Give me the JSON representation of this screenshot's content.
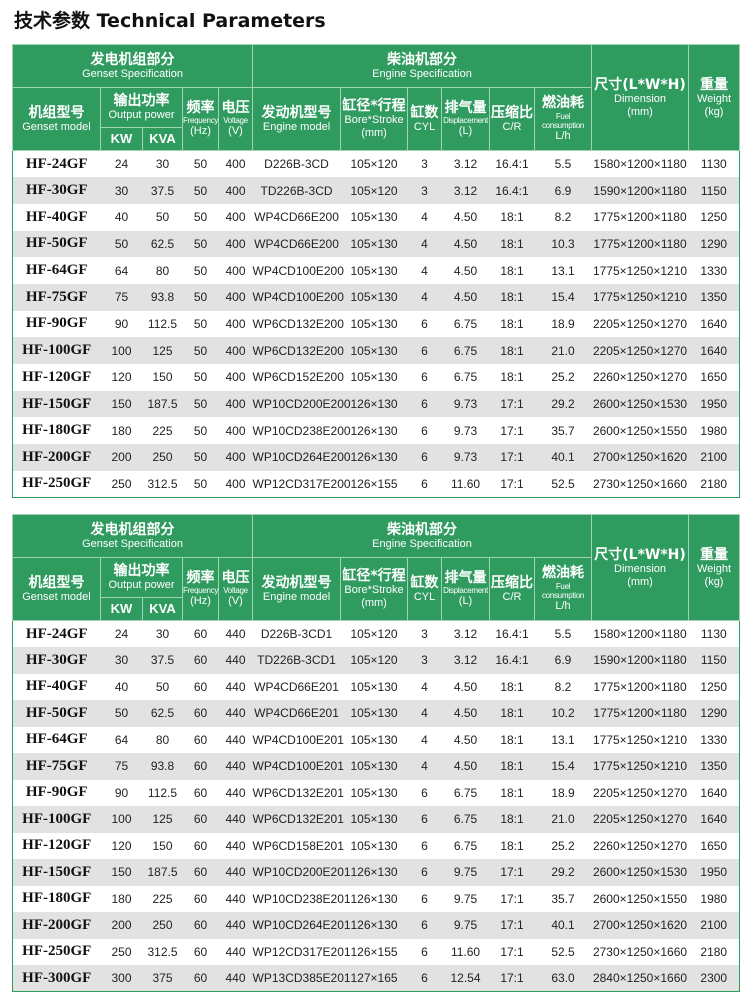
{
  "title": "技术参数 Technical Parameters",
  "header": {
    "genset_cn": "发电机组部分",
    "genset_en": "Genset  Specification",
    "engine_cn": "柴油机部分",
    "engine_en": "Engine  Specification",
    "model_cn": "机组型号",
    "model_en": "Genset model",
    "power_cn": "输出功率",
    "power_en": "Output power",
    "kw": "KW",
    "kva": "KVA",
    "freq_cn": "频率",
    "freq_en": "Frequency",
    "freq_unit": "(Hz)",
    "volt_cn": "电压",
    "volt_en": "Voltage",
    "volt_unit": "(V)",
    "engine_model_cn": "发动机型号",
    "engine_model_en": "Engine model",
    "bore_cn": "缸径*行程",
    "bore_en": "Bore*Stroke",
    "bore_unit": "(mm)",
    "cyl_cn": "缸数",
    "cyl_en": "CYL",
    "disp_cn": "排气量",
    "disp_en": "Displacement",
    "disp_unit": "(L)",
    "cr_cn": "压缩比",
    "cr_en": "C/R",
    "fuel_cn": "燃油耗",
    "fuel_en": "Fuel consumption",
    "fuel_unit": "L/h",
    "dim_cn": "尺寸(L*W*H)",
    "dim_en": "Dimension",
    "dim_unit": "(mm)",
    "weight_cn": "重量",
    "weight_en": "Weight",
    "weight_unit": "(kg)"
  },
  "table_50hz": [
    [
      "HF-24GF",
      "24",
      "30",
      "50",
      "400",
      "D226B-3CD",
      "105×120",
      "3",
      "3.12",
      "16.4:1",
      "5.5",
      "1580×1200×1180",
      "1130"
    ],
    [
      "HF-30GF",
      "30",
      "37.5",
      "50",
      "400",
      "TD226B-3CD",
      "105×120",
      "3",
      "3.12",
      "16.4:1",
      "6.9",
      "1590×1200×1180",
      "1150"
    ],
    [
      "HF-40GF",
      "40",
      "50",
      "50",
      "400",
      "WP4CD66E200",
      "105×130",
      "4",
      "4.50",
      "18:1",
      "8.2",
      "1775×1200×1180",
      "1250"
    ],
    [
      "HF-50GF",
      "50",
      "62.5",
      "50",
      "400",
      "WP4CD66E200",
      "105×130",
      "4",
      "4.50",
      "18:1",
      "10.3",
      "1775×1200×1180",
      "1290"
    ],
    [
      "HF-64GF",
      "64",
      "80",
      "50",
      "400",
      "WP4CD100E200",
      "105×130",
      "4",
      "4.50",
      "18:1",
      "13.1",
      "1775×1250×1210",
      "1330"
    ],
    [
      "HF-75GF",
      "75",
      "93.8",
      "50",
      "400",
      "WP4CD100E200",
      "105×130",
      "4",
      "4.50",
      "18:1",
      "15.4",
      "1775×1250×1210",
      "1350"
    ],
    [
      "HF-90GF",
      "90",
      "112.5",
      "50",
      "400",
      "WP6CD132E200",
      "105×130",
      "6",
      "6.75",
      "18:1",
      "18.9",
      "2205×1250×1270",
      "1640"
    ],
    [
      "HF-100GF",
      "100",
      "125",
      "50",
      "400",
      "WP6CD132E200",
      "105×130",
      "6",
      "6.75",
      "18:1",
      "21.0",
      "2205×1250×1270",
      "1640"
    ],
    [
      "HF-120GF",
      "120",
      "150",
      "50",
      "400",
      "WP6CD152E200",
      "105×130",
      "6",
      "6.75",
      "18:1",
      "25.2",
      "2260×1250×1270",
      "1650"
    ],
    [
      "HF-150GF",
      "150",
      "187.5",
      "50",
      "400",
      "WP10CD200E200",
      "126×130",
      "6",
      "9.73",
      "17:1",
      "29.2",
      "2600×1250×1530",
      "1950"
    ],
    [
      "HF-180GF",
      "180",
      "225",
      "50",
      "400",
      "WP10CD238E200",
      "126×130",
      "6",
      "9.73",
      "17:1",
      "35.7",
      "2600×1250×1550",
      "1980"
    ],
    [
      "HF-200GF",
      "200",
      "250",
      "50",
      "400",
      "WP10CD264E200",
      "126×130",
      "6",
      "9.73",
      "17:1",
      "40.1",
      "2700×1250×1620",
      "2100"
    ],
    [
      "HF-250GF",
      "250",
      "312.5",
      "50",
      "400",
      "WP12CD317E200",
      "126×155",
      "6",
      "11.60",
      "17:1",
      "52.5",
      "2730×1250×1660",
      "2180"
    ]
  ],
  "table_60hz": [
    [
      "HF-24GF",
      "24",
      "30",
      "60",
      "440",
      "D226B-3CD1",
      "105×120",
      "3",
      "3.12",
      "16.4:1",
      "5.5",
      "1580×1200×1180",
      "1130"
    ],
    [
      "HF-30GF",
      "30",
      "37.5",
      "60",
      "440",
      "TD226B-3CD1",
      "105×120",
      "3",
      "3.12",
      "16.4:1",
      "6.9",
      "1590×1200×1180",
      "1150"
    ],
    [
      "HF-40GF",
      "40",
      "50",
      "60",
      "440",
      "WP4CD66E201",
      "105×130",
      "4",
      "4.50",
      "18:1",
      "8.2",
      "1775×1200×1180",
      "1250"
    ],
    [
      "HF-50GF",
      "50",
      "62.5",
      "60",
      "440",
      "WP4CD66E201",
      "105×130",
      "4",
      "4.50",
      "18:1",
      "10.2",
      "1775×1200×1180",
      "1290"
    ],
    [
      "HF-64GF",
      "64",
      "80",
      "60",
      "440",
      "WP4CD100E201",
      "105×130",
      "4",
      "4.50",
      "18:1",
      "13.1",
      "1775×1250×1210",
      "1330"
    ],
    [
      "HF-75GF",
      "75",
      "93.8",
      "60",
      "440",
      "WP4CD100E201",
      "105×130",
      "4",
      "4.50",
      "18:1",
      "15.4",
      "1775×1250×1210",
      "1350"
    ],
    [
      "HF-90GF",
      "90",
      "112.5",
      "60",
      "440",
      "WP6CD132E201",
      "105×130",
      "6",
      "6.75",
      "18:1",
      "18.9",
      "2205×1250×1270",
      "1640"
    ],
    [
      "HF-100GF",
      "100",
      "125",
      "60",
      "440",
      "WP6CD132E201",
      "105×130",
      "6",
      "6.75",
      "18:1",
      "21.0",
      "2205×1250×1270",
      "1640"
    ],
    [
      "HF-120GF",
      "120",
      "150",
      "60",
      "440",
      "WP6CD158E201",
      "105×130",
      "6",
      "6.75",
      "18:1",
      "25.2",
      "2260×1250×1270",
      "1650"
    ],
    [
      "HF-150GF",
      "150",
      "187.5",
      "60",
      "440",
      "WP10CD200E201",
      "126×130",
      "6",
      "9.75",
      "17:1",
      "29.2",
      "2600×1250×1530",
      "1950"
    ],
    [
      "HF-180GF",
      "180",
      "225",
      "60",
      "440",
      "WP10CD238E201",
      "126×130",
      "6",
      "9.75",
      "17:1",
      "35.7",
      "2600×1250×1550",
      "1980"
    ],
    [
      "HF-200GF",
      "200",
      "250",
      "60",
      "440",
      "WP10CD264E201",
      "126×130",
      "6",
      "9.75",
      "17:1",
      "40.1",
      "2700×1250×1620",
      "2100"
    ],
    [
      "HF-250GF",
      "250",
      "312.5",
      "60",
      "440",
      "WP12CD317E201",
      "126×155",
      "6",
      "11.60",
      "17:1",
      "52.5",
      "2730×1250×1660",
      "2180"
    ],
    [
      "HF-300GF",
      "300",
      "375",
      "60",
      "440",
      "WP13CD385E201",
      "127×165",
      "6",
      "12.54",
      "17:1",
      "63.0",
      "2840×1250×1660",
      "2300"
    ]
  ],
  "colors": {
    "header_green": "#2f9b5f",
    "row_stripe": "#e2e2e2"
  }
}
